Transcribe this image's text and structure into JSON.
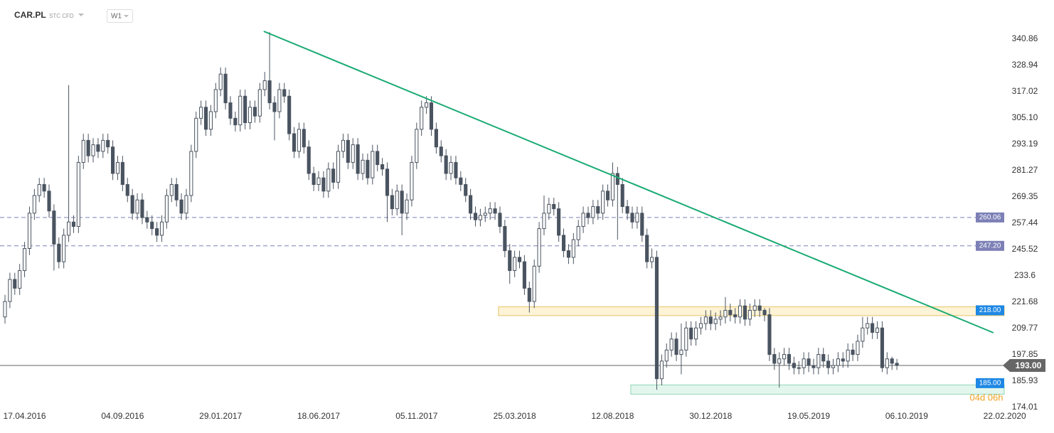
{
  "chart_data": {
    "type": "candlestick",
    "title": "CAR.PL",
    "subtitle": "STC CFD",
    "timeframe": "W1",
    "up_color": "#ffffff",
    "down_color": "#4a5460",
    "outline_color": "#4a5460",
    "open": [
      215,
      222,
      232,
      228,
      236,
      246,
      262,
      270,
      275,
      272,
      263,
      248,
      240,
      252,
      258,
      256,
      285,
      295,
      288,
      293,
      290,
      295,
      292,
      280,
      285,
      275,
      270,
      262,
      268,
      260,
      258,
      255,
      252,
      258,
      270,
      275,
      268,
      262,
      270,
      290,
      305,
      310,
      300,
      308,
      318,
      325,
      312,
      305,
      302,
      315,
      303,
      310,
      306,
      318,
      322,
      312,
      308,
      318,
      315,
      298,
      290,
      300,
      292,
      280,
      275,
      278,
      272,
      282,
      276,
      290,
      295,
      285,
      293,
      280,
      286,
      278,
      290,
      284,
      282,
      270,
      264,
      272,
      262,
      268,
      285,
      300,
      310,
      312,
      300,
      292,
      288,
      280,
      285,
      278,
      275,
      270,
      262,
      259,
      261,
      262,
      264,
      262,
      256,
      245,
      236,
      242,
      240,
      228,
      222,
      238,
      255,
      262,
      266,
      264,
      252,
      245,
      242,
      250,
      256,
      262,
      260,
      265,
      262,
      272,
      268,
      280,
      275,
      265,
      262,
      258,
      262,
      252,
      240,
      242,
      187,
      195,
      200,
      205,
      198,
      200,
      210,
      205,
      210,
      212,
      215,
      212,
      214,
      215,
      218,
      216,
      215,
      220,
      214,
      218,
      220,
      218,
      216,
      198,
      194,
      196,
      198,
      194,
      192,
      192,
      196,
      193,
      192,
      198,
      195,
      192,
      193,
      196,
      195,
      200,
      198,
      204,
      210,
      212,
      208,
      210,
      192,
      196,
      194
    ],
    "high": [
      225,
      235,
      235,
      239,
      249,
      265,
      273,
      278,
      278,
      275,
      266,
      251,
      255,
      320,
      261,
      288,
      298,
      298,
      296,
      296,
      298,
      298,
      295,
      288,
      288,
      278,
      273,
      271,
      271,
      263,
      261,
      258,
      261,
      273,
      278,
      278,
      271,
      273,
      293,
      308,
      313,
      313,
      311,
      321,
      328,
      328,
      315,
      308,
      318,
      318,
      313,
      313,
      321,
      326,
      344,
      315,
      321,
      321,
      318,
      301,
      303,
      303,
      295,
      283,
      281,
      281,
      285,
      285,
      293,
      298,
      298,
      296,
      296,
      289,
      289,
      293,
      293,
      287,
      285,
      273,
      275,
      275,
      271,
      288,
      303,
      313,
      315,
      315,
      303,
      295,
      291,
      288,
      288,
      281,
      278,
      273,
      265,
      264,
      265,
      267,
      267,
      265,
      259,
      248,
      245,
      245,
      243,
      231,
      241,
      258,
      270,
      269,
      269,
      267,
      255,
      248,
      253,
      259,
      265,
      265,
      268,
      268,
      275,
      275,
      285,
      283,
      278,
      268,
      265,
      265,
      265,
      255,
      246,
      245,
      198,
      203,
      208,
      208,
      212,
      213,
      213,
      213,
      215,
      218,
      218,
      217,
      218,
      224,
      221,
      219,
      223,
      223,
      221,
      223,
      223,
      219,
      219,
      201,
      199,
      201,
      201,
      197,
      195,
      199,
      199,
      196,
      201,
      201,
      198,
      196,
      199,
      199,
      203,
      203,
      207,
      215,
      215,
      215,
      213,
      213,
      199,
      197,
      196
    ],
    "low": [
      212,
      219,
      225,
      225,
      233,
      243,
      259,
      267,
      269,
      260,
      236,
      237,
      237,
      249,
      253,
      253,
      282,
      285,
      285,
      287,
      287,
      289,
      277,
      277,
      272,
      267,
      259,
      259,
      257,
      255,
      252,
      249,
      249,
      255,
      267,
      265,
      259,
      259,
      267,
      287,
      302,
      297,
      297,
      305,
      315,
      309,
      302,
      299,
      299,
      300,
      300,
      303,
      303,
      315,
      309,
      295,
      305,
      312,
      295,
      287,
      287,
      289,
      277,
      272,
      272,
      269,
      269,
      273,
      273,
      287,
      282,
      282,
      277,
      277,
      275,
      275,
      281,
      279,
      258,
      261,
      261,
      252,
      259,
      265,
      282,
      297,
      307,
      297,
      289,
      285,
      277,
      277,
      275,
      272,
      267,
      259,
      256,
      256,
      258,
      259,
      259,
      253,
      242,
      230,
      233,
      237,
      225,
      217,
      219,
      235,
      252,
      259,
      261,
      249,
      242,
      239,
      239,
      247,
      253,
      257,
      257,
      259,
      259,
      265,
      265,
      250,
      262,
      259,
      255,
      255,
      249,
      237,
      237,
      182,
      184,
      192,
      197,
      195,
      189,
      197,
      202,
      202,
      207,
      209,
      209,
      209,
      211,
      212,
      213,
      212,
      212,
      211,
      211,
      215,
      215,
      213,
      195,
      191,
      183,
      193,
      191,
      189,
      189,
      189,
      190,
      189,
      189,
      192,
      189,
      189,
      190,
      192,
      192,
      195,
      195,
      201,
      207,
      205,
      205,
      190,
      189,
      191,
      191
    ],
    "close": [
      222,
      232,
      228,
      236,
      246,
      262,
      270,
      275,
      272,
      263,
      248,
      240,
      252,
      258,
      256,
      285,
      295,
      288,
      293,
      290,
      295,
      292,
      280,
      285,
      275,
      270,
      262,
      268,
      260,
      258,
      255,
      252,
      258,
      270,
      275,
      268,
      262,
      270,
      290,
      305,
      310,
      300,
      308,
      318,
      325,
      312,
      305,
      302,
      315,
      303,
      310,
      306,
      318,
      322,
      312,
      308,
      318,
      315,
      298,
      290,
      300,
      292,
      280,
      275,
      278,
      272,
      282,
      276,
      290,
      295,
      285,
      293,
      280,
      286,
      278,
      290,
      284,
      282,
      270,
      264,
      272,
      262,
      268,
      285,
      300,
      310,
      312,
      300,
      292,
      288,
      280,
      285,
      278,
      275,
      270,
      262,
      259,
      261,
      262,
      264,
      262,
      256,
      245,
      236,
      242,
      240,
      228,
      222,
      238,
      255,
      262,
      266,
      264,
      252,
      245,
      242,
      250,
      256,
      262,
      260,
      265,
      262,
      272,
      268,
      280,
      275,
      265,
      262,
      258,
      262,
      252,
      240,
      242,
      187,
      195,
      200,
      205,
      198,
      200,
      210,
      205,
      210,
      212,
      215,
      212,
      214,
      215,
      218,
      216,
      215,
      220,
      214,
      218,
      220,
      218,
      216,
      198,
      194,
      196,
      198,
      194,
      192,
      192,
      196,
      193,
      192,
      198,
      195,
      192,
      193,
      196,
      195,
      200,
      198,
      204,
      210,
      212,
      208,
      210,
      192,
      196,
      194,
      193
    ],
    "xlim": [
      -1.016,
      203.9
    ],
    "ylim": [
      173.37,
      345.69
    ],
    "xticks": [
      {
        "value": 4,
        "label": "17.04.2016"
      },
      {
        "value": 24,
        "label": "04.09.2016"
      },
      {
        "value": 44,
        "label": "29.01.2017"
      },
      {
        "value": 64,
        "label": "18.06.2017"
      },
      {
        "value": 84,
        "label": "05.11.2017"
      },
      {
        "value": 104,
        "label": "25.03.2018"
      },
      {
        "value": 124,
        "label": "12.08.2018"
      },
      {
        "value": 144,
        "label": "30.12.2018"
      },
      {
        "value": 164,
        "label": "19.05.2019"
      },
      {
        "value": 184,
        "label": "06.10.2019"
      },
      {
        "value": 204,
        "label": "22.02.2020"
      }
    ],
    "yticks": [
      340.86,
      328.94,
      317.02,
      {
        "value": 305.1,
        "label": "305.10"
      },
      293.19,
      281.27,
      269.35,
      257.44,
      245.52,
      233.6,
      221.68,
      209.77,
      197.85,
      185.93,
      174.01
    ],
    "hlines": [
      {
        "value": 260.06,
        "color": "#7c80b6"
      },
      {
        "value": 247.2,
        "label": "247.20",
        "color": "#7c80b6"
      }
    ],
    "zones": [
      {
        "level": 218,
        "label": "218.00",
        "low": 215.6,
        "high": 219.6,
        "start": 100.7,
        "fill": "#fdf3d6",
        "stroke": "#e9c46a",
        "tag_color": "#1e88e5"
      },
      {
        "level": 185,
        "label": "185.00",
        "low": 180.0,
        "high": 184.2,
        "start": 127.7,
        "fill": "#e3f6ee",
        "stroke": "#8fd6b5",
        "tag_color": "#1e88e5"
      }
    ],
    "trendline": {
      "x": [
        52.8,
        201.7
      ],
      "y": [
        344.4,
        207.83
      ],
      "color": "#1aab74"
    },
    "last_price": {
      "value": 193,
      "label": "193.00",
      "color": "#666666"
    },
    "countdown": "04d 06h"
  }
}
